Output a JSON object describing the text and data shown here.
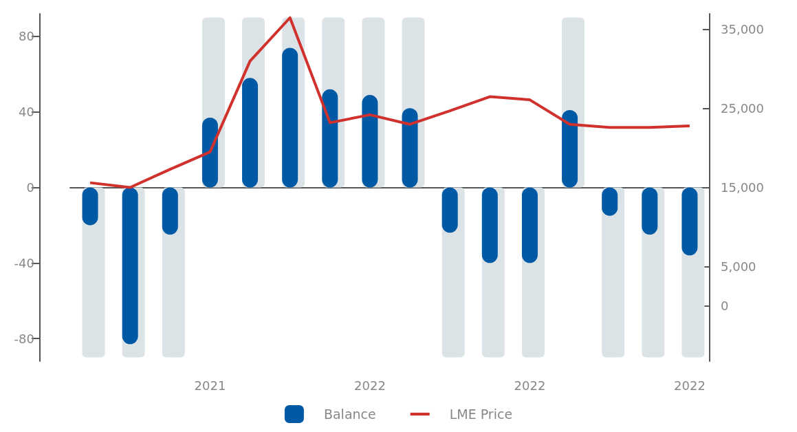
{
  "chart_data": {
    "type": "bar",
    "categories": [
      null,
      null,
      null,
      "2021",
      null,
      null,
      null,
      "2022",
      null,
      null,
      null,
      "2022",
      null,
      null,
      null,
      "2022"
    ],
    "series": [
      {
        "color": "#dce3e6",
        "values": [
          -90,
          -90,
          -90,
          90,
          90,
          90,
          90,
          90,
          90,
          -90,
          -90,
          -90,
          90,
          -90,
          -90,
          -90
        ]
      },
      {
        "name": "Balance",
        "color": "#0059a5",
        "values": [
          -20,
          -83,
          -25,
          37,
          58,
          74,
          52,
          49,
          42,
          -24,
          -40,
          -40,
          41,
          -15,
          -25,
          -36
        ]
      },
      {
        "name": "LME Price",
        "type": "line",
        "axis": "y2",
        "color": "#d0312d",
        "values": [
          15600,
          15000,
          17300,
          19500,
          31000,
          36500,
          23200,
          24200,
          23000,
          24700,
          26500,
          26100,
          23000,
          22600,
          22600,
          22800
        ]
      }
    ],
    "ylim": [
      -92,
      92
    ],
    "yticks": [
      -80,
      -40,
      0,
      40,
      80
    ],
    "y2lim": [
      -7000,
      37000
    ],
    "y2ticks": [
      0,
      {
        "value": 5000,
        "label": "5,000"
      },
      {
        "value": 15000,
        "label": "15,000"
      },
      {
        "value": 25000,
        "label": "25,000"
      },
      {
        "value": 35000,
        "label": "35,000"
      }
    ],
    "legend": "bottom",
    "marker": "none",
    "line_style": "solid"
  }
}
